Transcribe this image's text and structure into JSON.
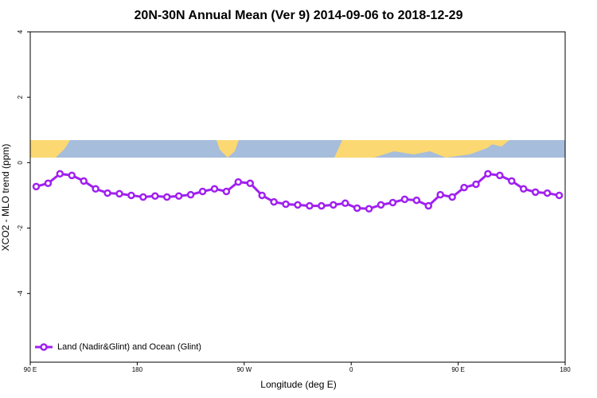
{
  "chart_data": {
    "type": "line",
    "title": "20N-30N Annual Mean (Ver 9)   2014-09-06 to 2018-12-29",
    "x_label": "Longitude (deg E)",
    "y_label": "XCO2 - MLO trend (ppm)",
    "x": [
      95,
      105,
      115,
      125,
      135,
      145,
      155,
      165,
      175,
      185,
      195,
      205,
      215,
      225,
      235,
      245,
      255,
      265,
      275,
      285,
      295,
      305,
      315,
      325,
      335,
      345,
      355,
      365,
      375,
      385,
      395,
      405,
      415,
      425,
      435,
      445,
      455,
      465,
      475,
      485,
      495,
      505,
      515,
      525,
      535
    ],
    "series": [
      {
        "name": "Land (Nadir&Glint) and Ocean (Glint)",
        "color": "#a020f0",
        "values": [
          -0.73,
          -0.63,
          -0.34,
          -0.39,
          -0.56,
          -0.8,
          -0.93,
          -0.95,
          -1.0,
          -1.05,
          -1.02,
          -1.05,
          -1.02,
          -0.98,
          -0.88,
          -0.8,
          -0.88,
          -0.59,
          -0.63,
          -1.0,
          -1.2,
          -1.27,
          -1.29,
          -1.32,
          -1.32,
          -1.29,
          -1.24,
          -1.39,
          -1.41,
          -1.29,
          -1.22,
          -1.12,
          -1.15,
          -1.32,
          -0.98,
          -1.05,
          -0.76,
          -0.66,
          -0.34,
          -0.39,
          -0.56,
          -0.8,
          -0.9,
          -0.93,
          -1.0
        ]
      }
    ],
    "xlim": [
      90,
      540
    ],
    "xticks": [
      {
        "value": 90,
        "label": "90 E"
      },
      180,
      {
        "value": 270,
        "label": "90 W"
      },
      {
        "value": 360,
        "label": "0"
      },
      {
        "value": 450,
        "label": "90 E"
      },
      {
        "value": 540,
        "label": "180"
      }
    ],
    "ylim": [
      -6.1,
      4
    ],
    "yticks": [
      4,
      2,
      0,
      -2,
      -4
    ],
    "legend": "bottom-left"
  }
}
